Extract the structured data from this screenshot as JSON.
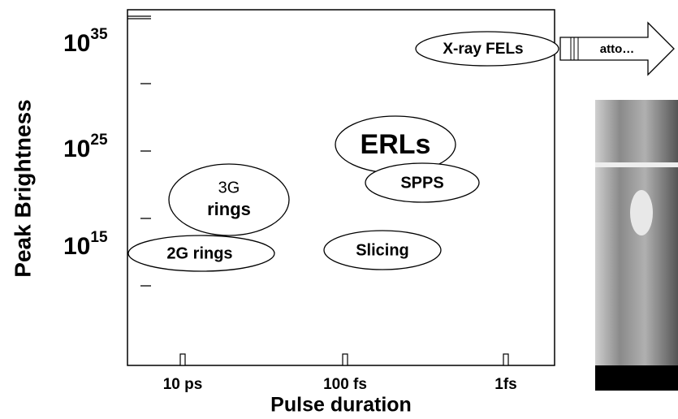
{
  "axes": {
    "y_label": "Peak Brightness",
    "x_label": "Pulse duration",
    "y_ticks": [
      {
        "base": "10",
        "exponent": "35"
      },
      {
        "base": "10",
        "exponent": "25"
      },
      {
        "base": "10",
        "exponent": "15"
      }
    ],
    "x_ticks": [
      "10 ps",
      "100 fs",
      "1fs"
    ]
  },
  "nodes": [
    {
      "label": "X-ray FELs"
    },
    {
      "label": "ERLs"
    },
    {
      "label": "SPPS"
    },
    {
      "lines": [
        "3G",
        "rings"
      ]
    },
    {
      "label": "2G rings"
    },
    {
      "label": "Slicing"
    }
  ],
  "arrow": {
    "label": "atto…"
  }
}
